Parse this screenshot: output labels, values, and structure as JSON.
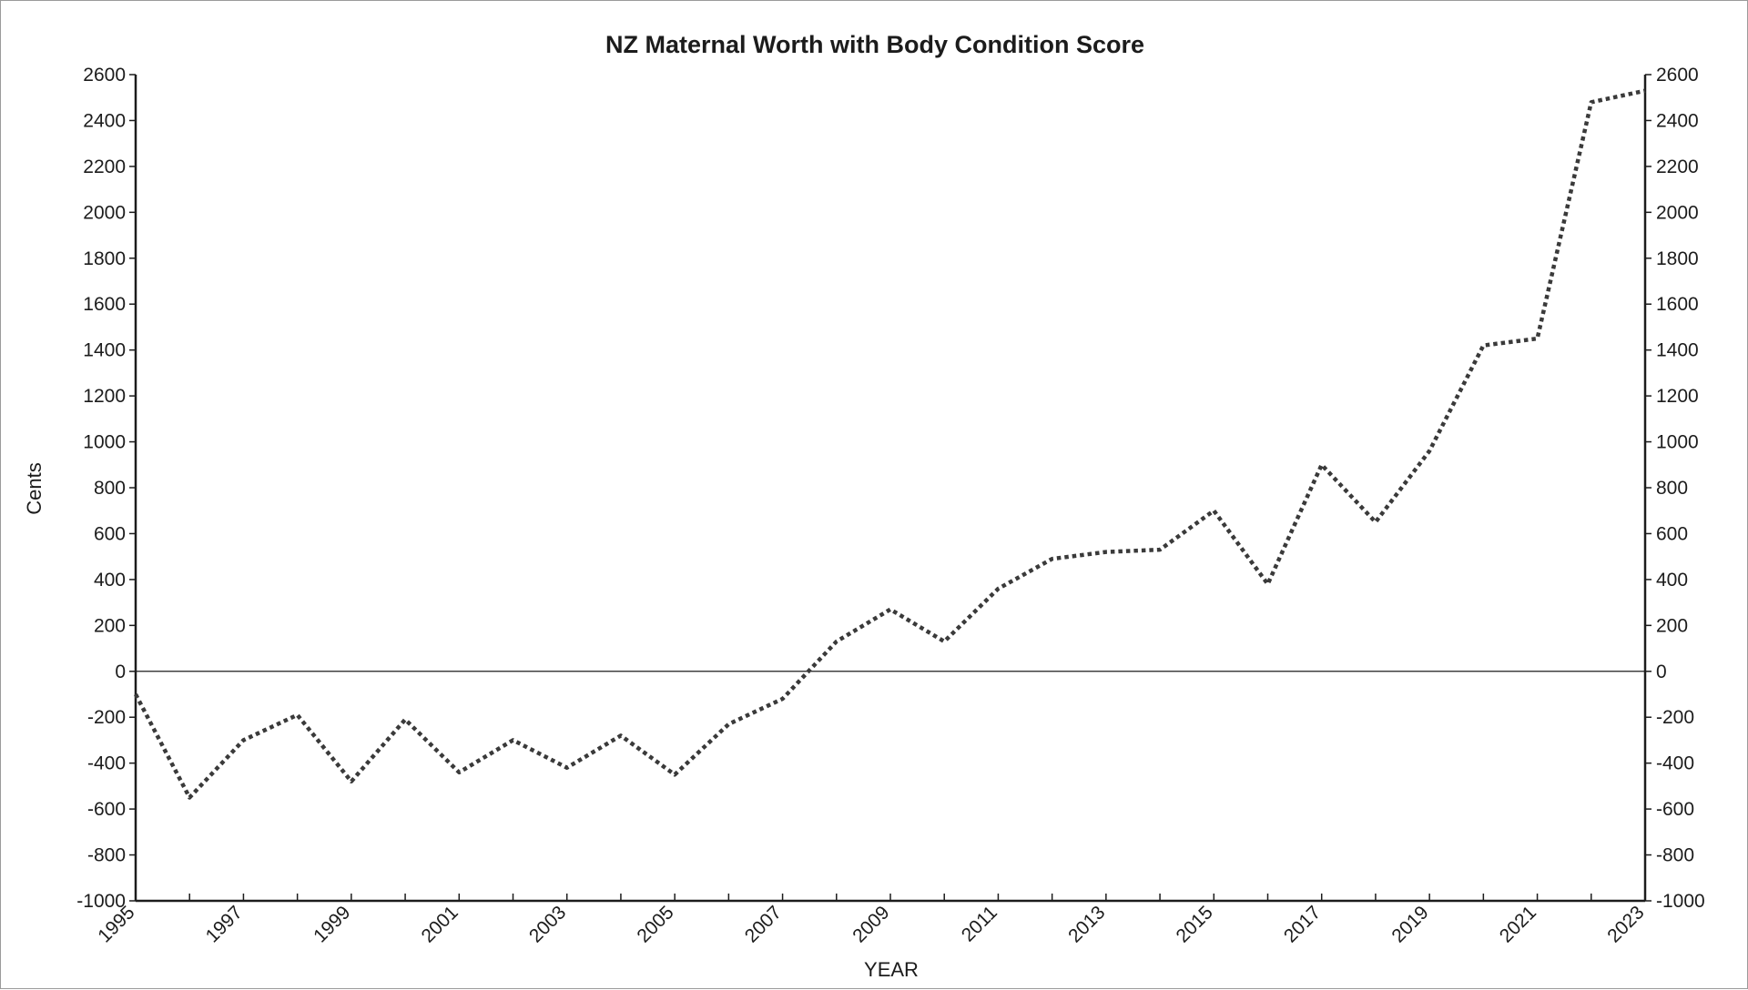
{
  "chart_data": {
    "type": "line",
    "title": "NZ Maternal Worth with Body Condition Score",
    "xlabel": "YEAR",
    "ylabel": "Cents",
    "x": [
      1995,
      1996,
      1997,
      1998,
      1999,
      2000,
      2001,
      2002,
      2003,
      2004,
      2005,
      2006,
      2007,
      2008,
      2009,
      2010,
      2011,
      2012,
      2013,
      2014,
      2015,
      2016,
      2017,
      2018,
      2019,
      2020,
      2021,
      2022,
      2023
    ],
    "x_tick_labels": [
      "1995",
      "1997",
      "1999",
      "2001",
      "2003",
      "2005",
      "2007",
      "2009",
      "2011",
      "2013",
      "2015",
      "2017",
      "2019",
      "2021",
      "2023"
    ],
    "y_ticks": [
      2600,
      2400,
      2200,
      2000,
      1800,
      1600,
      1400,
      1200,
      1000,
      800,
      600,
      400,
      200,
      0,
      -200,
      -400,
      -600,
      -800,
      -1000
    ],
    "xlim": [
      1995,
      2023
    ],
    "ylim": [
      -1000,
      2600
    ],
    "series": [
      {
        "values": [
          -100,
          -550,
          -300,
          -190,
          -480,
          -210,
          -440,
          -300,
          -420,
          -280,
          -450,
          -230,
          -120,
          130,
          270,
          130,
          360,
          490,
          520,
          530,
          700,
          380,
          900,
          650,
          960,
          1420,
          1450,
          2480,
          2530
        ],
        "line_style": "dotted",
        "color": "#3a3a3a"
      }
    ],
    "y_axis_on_both_sides": true,
    "zero_line": true,
    "grid": false,
    "legend": false
  }
}
